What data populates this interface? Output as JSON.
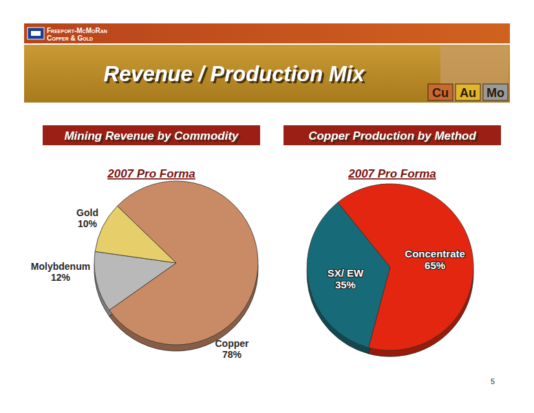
{
  "page": {
    "logo": [
      "Freeport-McMoRan",
      "Copper & Gold"
    ],
    "title": "Revenue / Production Mix",
    "badges": [
      "Cu",
      "Au",
      "Mo"
    ],
    "page_number": "5"
  },
  "chart_data": [
    {
      "type": "pie",
      "title": "Mining Revenue by Commodity",
      "subtitle": "2007 Pro Forma",
      "categories": [
        "Copper",
        "Molybdenum",
        "Gold"
      ],
      "values": [
        78,
        12,
        10
      ],
      "value_labels": [
        "78%",
        "12%",
        "10%"
      ],
      "colors": [
        "#c98a66",
        "#b9b9b9",
        "#e6cf6a"
      ],
      "data_labels": true
    },
    {
      "type": "pie",
      "title": "Copper Production by Method",
      "subtitle": "2007 Pro Forma",
      "categories": [
        "SX/ EW",
        "Concentrate"
      ],
      "values": [
        35,
        65
      ],
      "value_labels": [
        "35%",
        "65%"
      ],
      "colors": [
        "#176b78",
        "#e3260f"
      ],
      "data_labels": true
    }
  ]
}
